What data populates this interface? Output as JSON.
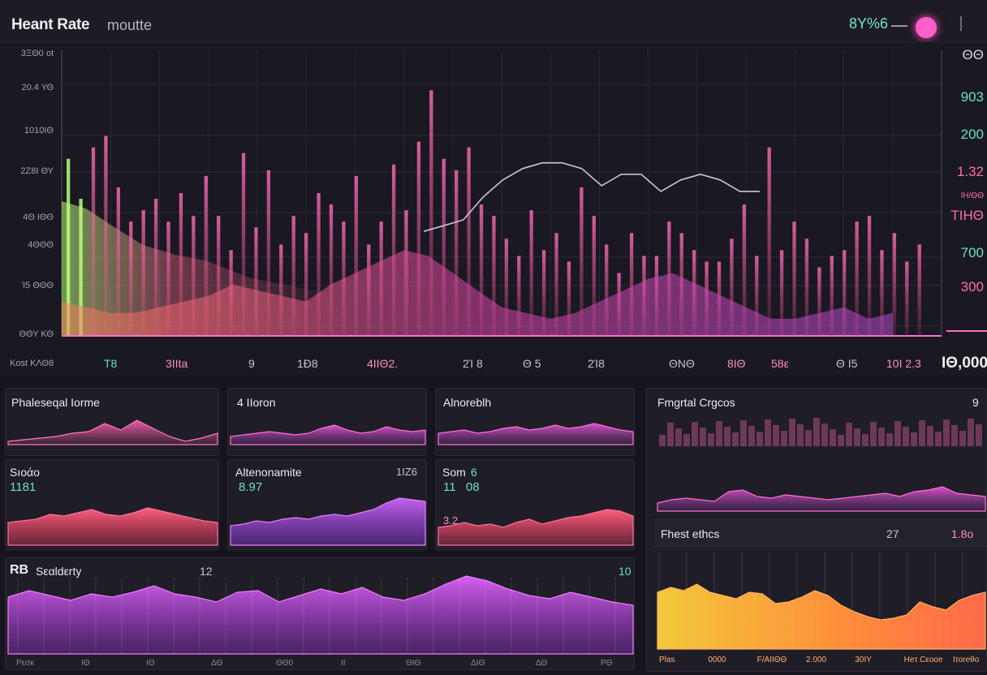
{
  "header": {
    "title": "Heant Rate",
    "subtitle": "moutte",
    "value": "8Y%6"
  },
  "main_chart": {
    "y_labels": [
      "3ΞΘ0 ot",
      "20.4 ΥΘ",
      "1010IΘ",
      "2Ζ8Ι ΘΥ",
      "4Θ ΙΘΘ",
      "4ΘΘΘ",
      "Ί5 ΘΘΘ",
      "ΘΘΥ ΚΘ"
    ],
    "x_first": "Kost ΚΛΘ8",
    "x_labels": [
      "T8",
      "3IIta",
      "9",
      "1Ð8",
      "4IIΘ2.",
      "2Ί 8",
      "Θ 5",
      "2Ί8",
      "ΘΝΘ",
      "8IΘ",
      "58ε",
      "Θ Ι5",
      "10I 2.3"
    ],
    "x_last": "ΙΘ,000",
    "right_labels": [
      {
        "text": "ΘΘ",
        "color": "#d8d4dc"
      },
      {
        "text": "903",
        "color": "#66e3c0"
      },
      {
        "text": "200",
        "color": "#66e3c0"
      },
      {
        "text": "1.32",
        "color": "#ff6fae"
      },
      {
        "text": "ΙΗ/ΘΘ",
        "color": "#ff6fae"
      },
      {
        "text": "ΤΙΗΘ",
        "color": "#ff6fae"
      },
      {
        "text": "700",
        "color": "#66e3c0"
      },
      {
        "text": "300",
        "color": "#ff6fae"
      }
    ]
  },
  "panels": {
    "p1": {
      "title": "Phaleseqal Ιοrme"
    },
    "p2": {
      "title": "4 ΙΙοron"
    },
    "p3": {
      "title": "Alnoreblh"
    },
    "p4": {
      "title": "Fmgrtal Crgcos",
      "value": "9"
    },
    "p5": {
      "title": "Sıoάo",
      "value": "1181"
    },
    "p6": {
      "title": "Altenonamite",
      "value": "1ΙΖ6",
      "sub": "8.97"
    },
    "p7": {
      "title": "Som",
      "value": "6",
      "sub1": "11",
      "sub2": "08",
      "sub3": "3.2"
    },
    "p8": {
      "title": "Fhest ethcs",
      "value1": "27",
      "value2": "1.8ο"
    },
    "p9": {
      "title": "Sεαldεrty",
      "badge": "RB",
      "mid": "12",
      "value": "10",
      "x_labels": [
        "Ρεσκ",
        "ΙΘ",
        "ΙΘ",
        "ΔΘ",
        "ΘΘ0",
        "ΙΙ",
        "ΘΙΘ",
        "ΔΙΘ",
        "ΔΘ",
        "ΡΘ"
      ]
    },
    "p10": {
      "x_labels": [
        "Plas",
        "0000",
        "F/ΑΙΙΘΘ",
        "2.000",
        "30ΙΥ",
        "Ηeτ Cεοoe",
        "Ιτoreθο"
      ]
    }
  },
  "colors": {
    "accent_pink": "#ff4fc0",
    "accent_teal": "#66e3c0",
    "accent_orange": "#ff8a3c",
    "accent_yellow": "#f2c93a",
    "accent_purple": "#a449e8",
    "bg": "#16141c"
  },
  "chart_data": {
    "type": "bar",
    "values": [
      62,
      48,
      66,
      70,
      52,
      40,
      44,
      48,
      40,
      50,
      42,
      56,
      42,
      30,
      64,
      38,
      58,
      32,
      42,
      36,
      50,
      46,
      40,
      56,
      32,
      40,
      60,
      44,
      68,
      86,
      62,
      58,
      66,
      46,
      42,
      34,
      28,
      44,
      30,
      36,
      26,
      52,
      42,
      32,
      22,
      36,
      28,
      28,
      40,
      36,
      30,
      26,
      26,
      34,
      46,
      28,
      66,
      30,
      40,
      34,
      24,
      28,
      30,
      40,
      42,
      30,
      36,
      26,
      32
    ],
    "line_values": [
      40,
      42,
      44,
      52,
      58,
      62,
      64,
      64,
      62,
      56,
      60,
      60,
      54,
      58,
      60,
      58,
      54,
      54
    ],
    "area_values": [
      12,
      10,
      8,
      8,
      10,
      12,
      14,
      18,
      16,
      14,
      12,
      18,
      22,
      26,
      30,
      28,
      22,
      16,
      10,
      8,
      6,
      8,
      12,
      16,
      20,
      22,
      18,
      14,
      10,
      6,
      6,
      8,
      10,
      6,
      8
    ]
  }
}
